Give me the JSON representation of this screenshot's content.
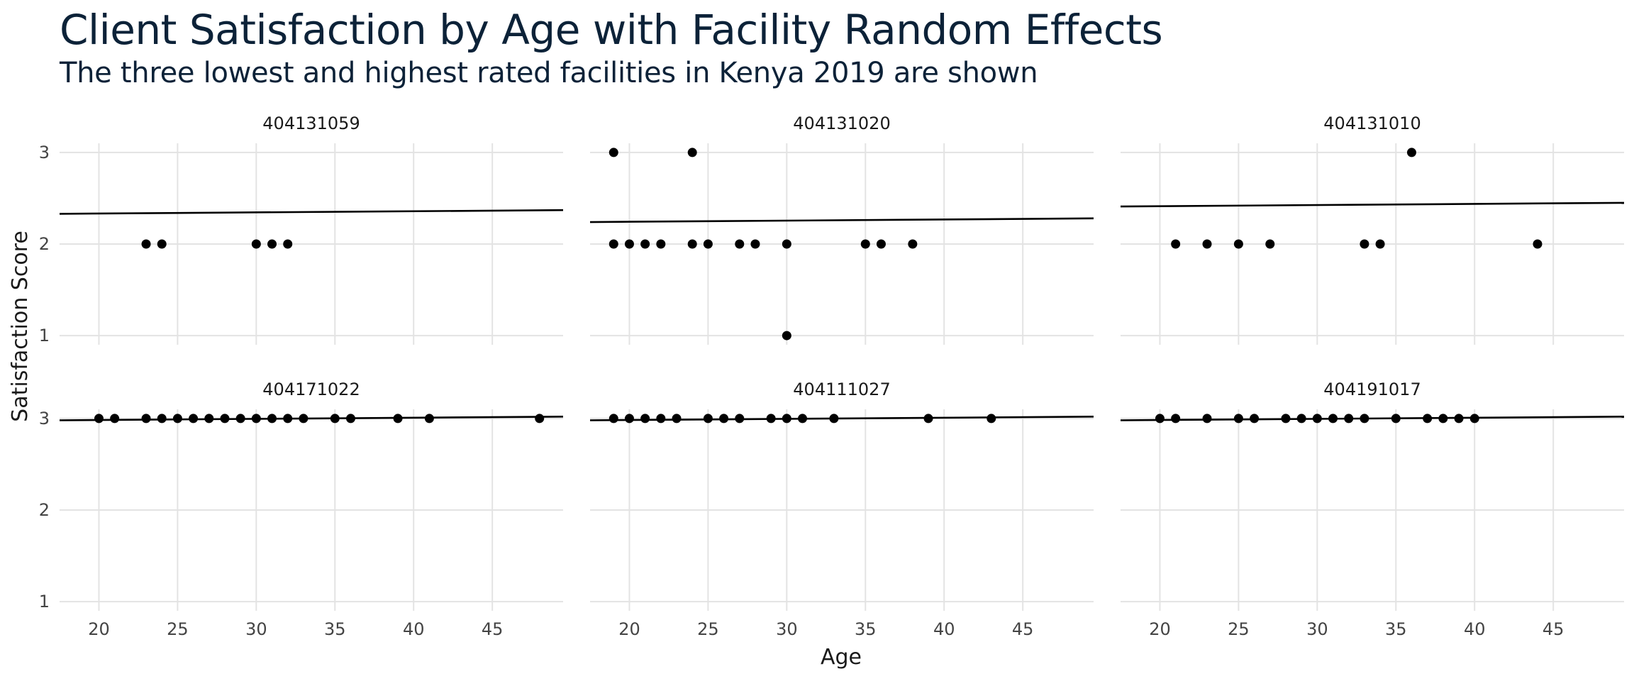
{
  "chart_data": {
    "type": "scatter",
    "title": "Client Satisfaction by Age with Facility Random Effects",
    "subtitle": "The three lowest and highest rated facilities in Kenya 2019 are shown",
    "xlabel": "Age",
    "ylabel": "Satisfaction Score",
    "xlim": [
      17.5,
      49.5
    ],
    "ylim": [
      0.9,
      3.1
    ],
    "x_ticks": [
      20,
      25,
      30,
      35,
      40,
      45
    ],
    "y_ticks": [
      1,
      2,
      3
    ],
    "grid": true,
    "panels": [
      {
        "facility": "404131059",
        "points": [
          [
            23,
            2
          ],
          [
            24,
            2
          ],
          [
            30,
            2
          ],
          [
            31,
            2
          ],
          [
            32,
            2
          ]
        ],
        "fit_line": [
          [
            17.5,
            2.33
          ],
          [
            49.5,
            2.37
          ]
        ]
      },
      {
        "facility": "404131020",
        "points": [
          [
            19,
            3
          ],
          [
            24,
            3
          ],
          [
            19,
            2
          ],
          [
            20,
            2
          ],
          [
            21,
            2
          ],
          [
            22,
            2
          ],
          [
            24,
            2
          ],
          [
            25,
            2
          ],
          [
            27,
            2
          ],
          [
            28,
            2
          ],
          [
            30,
            2
          ],
          [
            35,
            2
          ],
          [
            36,
            2
          ],
          [
            38,
            2
          ],
          [
            30,
            1
          ]
        ],
        "fit_line": [
          [
            17.5,
            2.24
          ],
          [
            49.5,
            2.28
          ]
        ]
      },
      {
        "facility": "404131010",
        "points": [
          [
            36,
            3
          ],
          [
            21,
            2
          ],
          [
            23,
            2
          ],
          [
            25,
            2
          ],
          [
            27,
            2
          ],
          [
            33,
            2
          ],
          [
            34,
            2
          ],
          [
            44,
            2
          ]
        ],
        "fit_line": [
          [
            17.5,
            2.41
          ],
          [
            49.5,
            2.45
          ]
        ]
      },
      {
        "facility": "404171022",
        "points": [
          [
            20,
            3
          ],
          [
            21,
            3
          ],
          [
            23,
            3
          ],
          [
            24,
            3
          ],
          [
            25,
            3
          ],
          [
            26,
            3
          ],
          [
            27,
            3
          ],
          [
            28,
            3
          ],
          [
            29,
            3
          ],
          [
            30,
            3
          ],
          [
            31,
            3
          ],
          [
            32,
            3
          ],
          [
            33,
            3
          ],
          [
            35,
            3
          ],
          [
            36,
            3
          ],
          [
            39,
            3
          ],
          [
            41,
            3
          ],
          [
            48,
            3
          ]
        ],
        "fit_line": [
          [
            17.5,
            2.98
          ],
          [
            49.5,
            3.02
          ]
        ]
      },
      {
        "facility": "404111027",
        "points": [
          [
            19,
            3
          ],
          [
            20,
            3
          ],
          [
            21,
            3
          ],
          [
            22,
            3
          ],
          [
            23,
            3
          ],
          [
            25,
            3
          ],
          [
            26,
            3
          ],
          [
            27,
            3
          ],
          [
            29,
            3
          ],
          [
            30,
            3
          ],
          [
            31,
            3
          ],
          [
            33,
            3
          ],
          [
            39,
            3
          ],
          [
            43,
            3
          ]
        ],
        "fit_line": [
          [
            17.5,
            2.98
          ],
          [
            49.5,
            3.02
          ]
        ]
      },
      {
        "facility": "404191017",
        "points": [
          [
            20,
            3
          ],
          [
            21,
            3
          ],
          [
            23,
            3
          ],
          [
            25,
            3
          ],
          [
            26,
            3
          ],
          [
            28,
            3
          ],
          [
            29,
            3
          ],
          [
            30,
            3
          ],
          [
            31,
            3
          ],
          [
            32,
            3
          ],
          [
            33,
            3
          ],
          [
            35,
            3
          ],
          [
            37,
            3
          ],
          [
            38,
            3
          ],
          [
            39,
            3
          ],
          [
            40,
            3
          ]
        ],
        "fit_line": [
          [
            17.5,
            2.98
          ],
          [
            49.5,
            3.02
          ]
        ]
      }
    ],
    "colors": {
      "points": "#000000",
      "line": "#000000",
      "grid": "#e3e3e3",
      "title": "#0c2238"
    }
  }
}
